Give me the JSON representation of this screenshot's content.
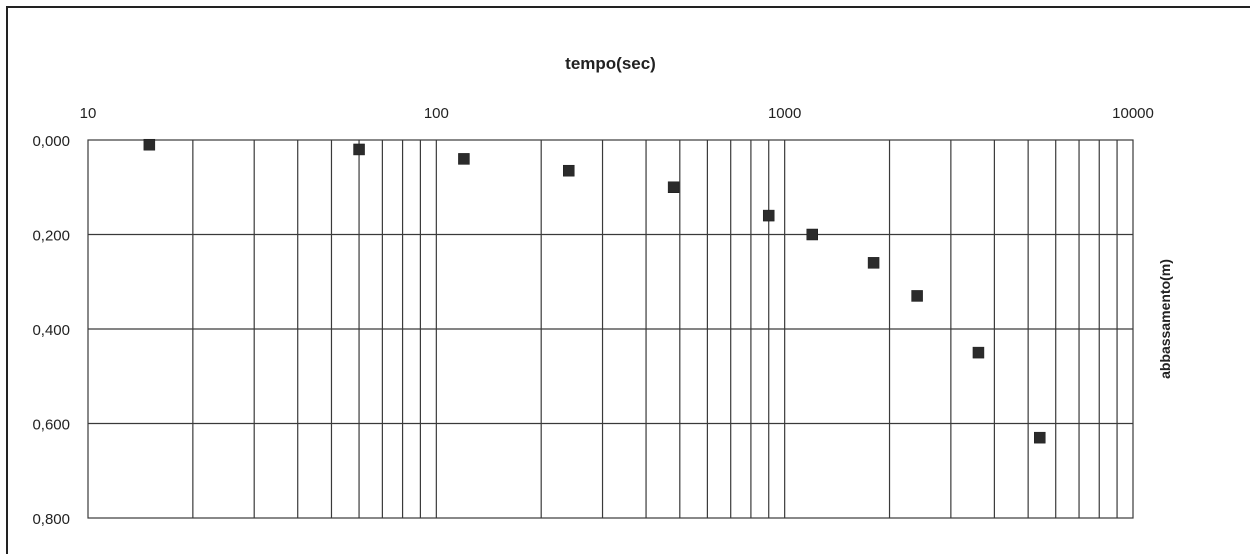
{
  "chart_data": {
    "type": "scatter",
    "title": "",
    "xlabel": "tempo(sec)",
    "ylabel": "abbassamento(m)",
    "x_scale": "log",
    "x_axis_position": "top",
    "y_inverted": true,
    "y_axis_position": "left",
    "y_title_position": "right",
    "xlim": [
      10,
      10000
    ],
    "ylim": [
      0,
      0.8
    ],
    "x_ticks": [
      10,
      100,
      1000,
      10000
    ],
    "x_tick_labels": [
      "10",
      "100",
      "1000",
      "10000"
    ],
    "y_ticks": [
      0,
      0.2,
      0.4,
      0.6,
      0.8
    ],
    "y_tick_labels": [
      "0,000",
      "0,200",
      "0,400",
      "0,600",
      "0,800"
    ],
    "grid": true,
    "marker": "square",
    "marker_color": "#2b2b2b",
    "points": [
      {
        "x": 15,
        "y": 0.01
      },
      {
        "x": 60,
        "y": 0.02
      },
      {
        "x": 120,
        "y": 0.04
      },
      {
        "x": 240,
        "y": 0.065
      },
      {
        "x": 480,
        "y": 0.1
      },
      {
        "x": 900,
        "y": 0.16
      },
      {
        "x": 1200,
        "y": 0.2
      },
      {
        "x": 1800,
        "y": 0.26
      },
      {
        "x": 2400,
        "y": 0.33
      },
      {
        "x": 3600,
        "y": 0.45
      },
      {
        "x": 5400,
        "y": 0.63
      }
    ]
  }
}
